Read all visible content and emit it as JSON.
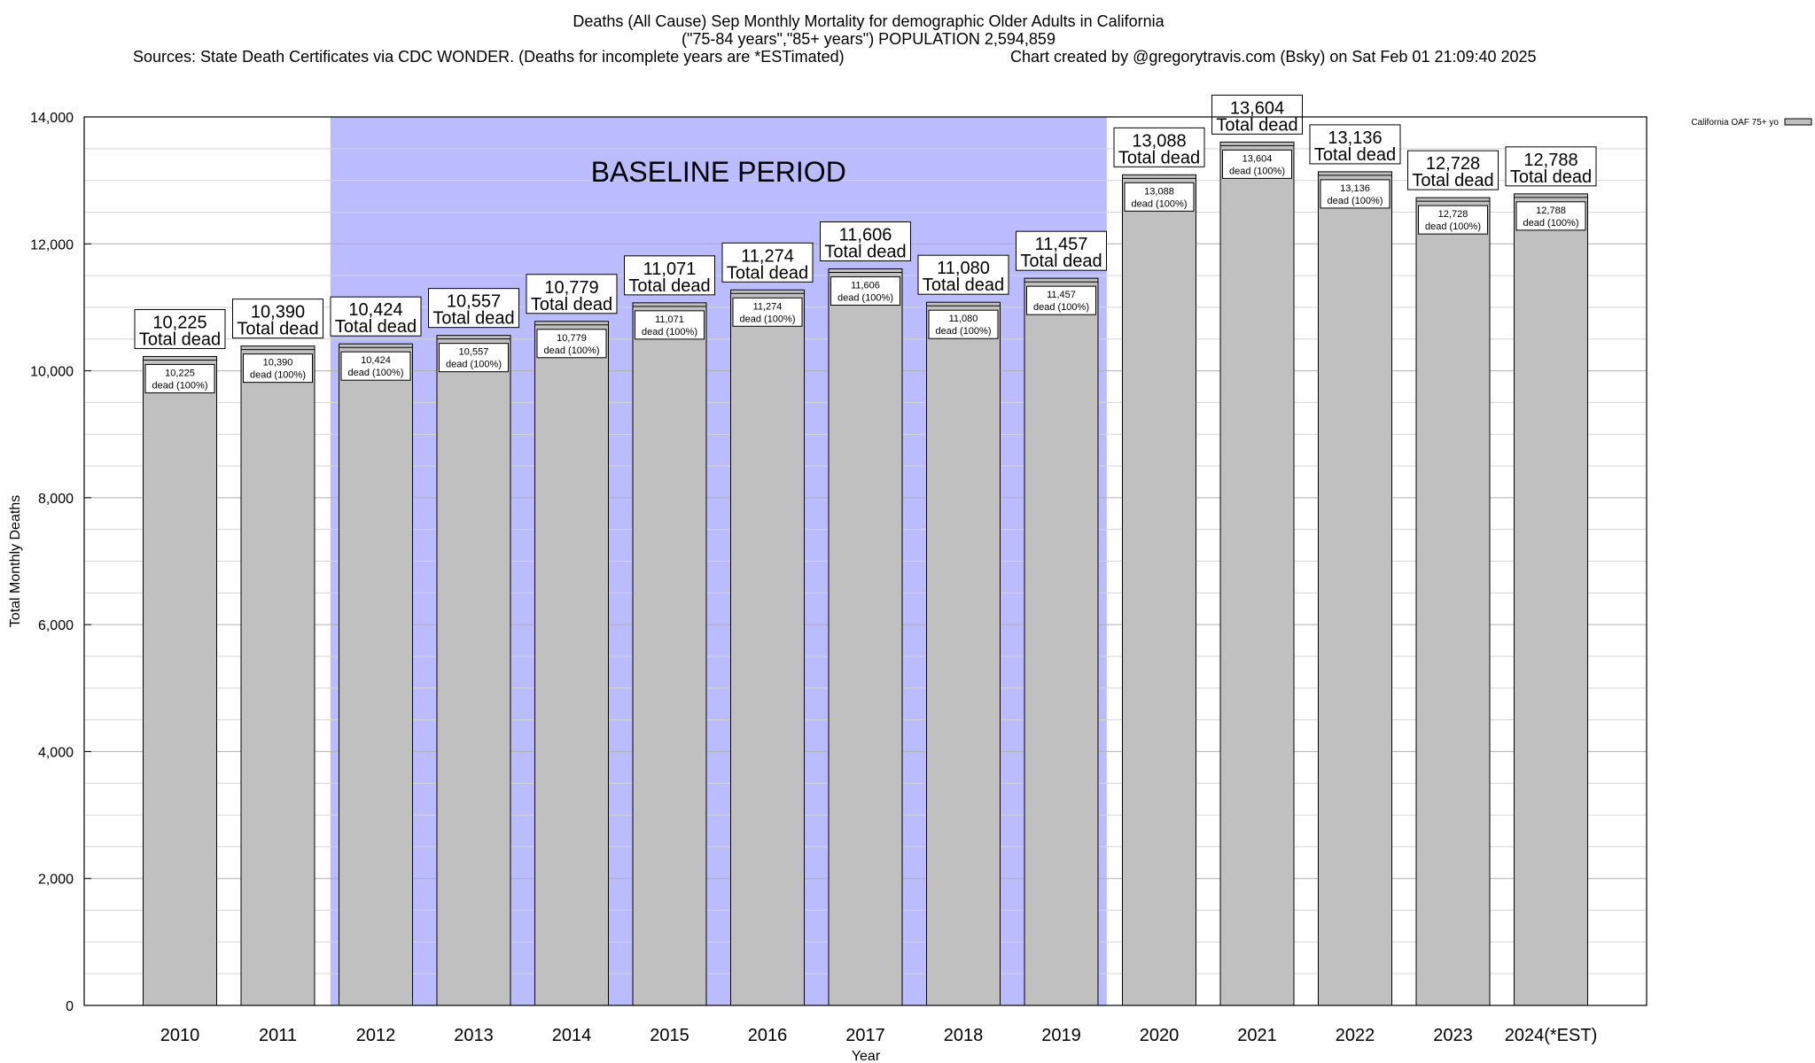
{
  "chart_data": {
    "type": "bar",
    "title": "Deaths (All Cause) Sep Monthly Mortality for demographic Older Adults in California",
    "subtitle": "(\"75-84 years\",\"85+ years\") POPULATION 2,594,859",
    "source_note": "Sources: State Death Certificates via CDC WONDER. (Deaths for incomplete years are *ESTimated)",
    "credit_note": "Chart created by @gregorytravis.com (Bsky) on Sat Feb 01 21:09:40 2025",
    "xlabel": "Year",
    "ylabel": "Total Monthly Deaths",
    "ylim": [
      0,
      14000
    ],
    "yticks": [
      0,
      2000,
      4000,
      6000,
      8000,
      10000,
      12000,
      14000
    ],
    "ytick_labels": [
      "0",
      "2,000",
      "4,000",
      "6,000",
      "8,000",
      "10,000",
      "12,000",
      "14,000"
    ],
    "grid": true,
    "legend_position": "top-right",
    "categories": [
      "2010",
      "2011",
      "2012",
      "2013",
      "2014",
      "2015",
      "2016",
      "2017",
      "2018",
      "2019",
      "2020",
      "2021",
      "2022",
      "2023",
      "2024(*EST)"
    ],
    "series": [
      {
        "name": "California OAF 75+ yo",
        "values": [
          10225,
          10390,
          10424,
          10557,
          10779,
          11071,
          11274,
          11606,
          11080,
          11457,
          13088,
          13604,
          13136,
          12728,
          12788
        ],
        "value_labels": [
          "10,225",
          "10,390",
          "10,424",
          "10,557",
          "10,779",
          "11,071",
          "11,274",
          "11,606",
          "11,080",
          "11,457",
          "13,088",
          "13,604",
          "13,136",
          "12,728",
          "12,788"
        ],
        "color": "#c0c0c0"
      }
    ],
    "total_label_suffix": "Total dead",
    "inner_label_suffix": "dead (100%)",
    "baseline": {
      "label": "BASELINE PERIOD",
      "start_category": "2012",
      "end_category": "2019",
      "color": "#bbbbff"
    }
  }
}
